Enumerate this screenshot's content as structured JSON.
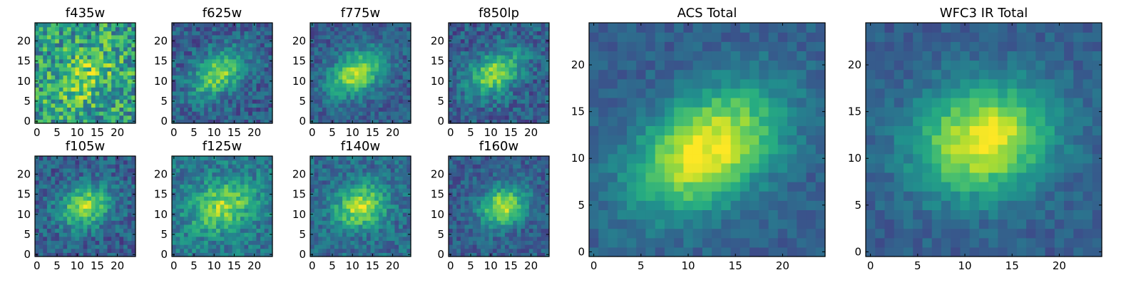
{
  "chart_data": {
    "type": "heatmap",
    "colormap": "viridis",
    "grid_size": [
      25,
      25
    ],
    "panels": [
      {
        "id": "f435w",
        "title": "f435w",
        "center": [
          12,
          11
        ],
        "sigma": [
          6.0,
          4.0
        ],
        "rot": -0.6,
        "amp": 0.25,
        "noise": 0.55,
        "base": 0.55,
        "xlim": [
          0,
          24
        ],
        "ylim": [
          0,
          24
        ],
        "xticks": [
          0,
          5,
          10,
          15,
          20
        ],
        "yticks": [
          0,
          5,
          10,
          15,
          20
        ]
      },
      {
        "id": "f625w",
        "title": "f625w",
        "center": [
          11,
          12
        ],
        "sigma": [
          5.0,
          3.2
        ],
        "rot": -0.6,
        "amp": 0.55,
        "noise": 0.3,
        "base": 0.3,
        "xlim": [
          0,
          24
        ],
        "ylim": [
          0,
          24
        ],
        "xticks": [
          0,
          5,
          10,
          15,
          20
        ],
        "yticks": [
          0,
          5,
          10,
          15,
          20
        ]
      },
      {
        "id": "f775w",
        "title": "f775w",
        "center": [
          11,
          12
        ],
        "sigma": [
          5.0,
          3.2
        ],
        "rot": -0.6,
        "amp": 0.6,
        "noise": 0.25,
        "base": 0.3,
        "xlim": [
          0,
          24
        ],
        "ylim": [
          0,
          24
        ],
        "xticks": [
          0,
          5,
          10,
          15,
          20
        ],
        "yticks": [
          0,
          5,
          10,
          15,
          20
        ]
      },
      {
        "id": "f850lp",
        "title": "f850lp",
        "center": [
          11,
          12
        ],
        "sigma": [
          5.0,
          3.2
        ],
        "rot": -0.6,
        "amp": 0.55,
        "noise": 0.3,
        "base": 0.3,
        "xlim": [
          0,
          24
        ],
        "ylim": [
          0,
          24
        ],
        "xticks": [
          0,
          5,
          10,
          15,
          20
        ],
        "yticks": [
          0,
          5,
          10,
          15,
          20
        ]
      },
      {
        "id": "f105w",
        "title": "f105w",
        "center": [
          12,
          12
        ],
        "sigma": [
          4.5,
          3.5
        ],
        "rot": -0.4,
        "amp": 0.55,
        "noise": 0.3,
        "base": 0.3,
        "xlim": [
          0,
          24
        ],
        "ylim": [
          0,
          24
        ],
        "xticks": [
          0,
          5,
          10,
          15,
          20
        ],
        "yticks": [
          0,
          5,
          10,
          15,
          20
        ]
      },
      {
        "id": "f125w",
        "title": "f125w",
        "center": [
          12,
          12
        ],
        "sigma": [
          5.5,
          4.0
        ],
        "rot": -0.4,
        "amp": 0.45,
        "noise": 0.3,
        "base": 0.4,
        "xlim": [
          0,
          24
        ],
        "ylim": [
          0,
          24
        ],
        "xticks": [
          0,
          5,
          10,
          15,
          20
        ],
        "yticks": [
          0,
          5,
          10,
          15,
          20
        ]
      },
      {
        "id": "f140w",
        "title": "f140w",
        "center": [
          12,
          12
        ],
        "sigma": [
          4.5,
          3.5
        ],
        "rot": -0.4,
        "amp": 0.55,
        "noise": 0.28,
        "base": 0.35,
        "xlim": [
          0,
          24
        ],
        "ylim": [
          0,
          24
        ],
        "xticks": [
          0,
          5,
          10,
          15,
          20
        ],
        "yticks": [
          0,
          5,
          10,
          15,
          20
        ]
      },
      {
        "id": "f160w",
        "title": "f160w",
        "center": [
          13,
          12
        ],
        "sigma": [
          4.0,
          3.2
        ],
        "rot": -0.5,
        "amp": 0.6,
        "noise": 0.25,
        "base": 0.3,
        "xlim": [
          0,
          24
        ],
        "ylim": [
          0,
          24
        ],
        "xticks": [
          0,
          5,
          10,
          15,
          20
        ],
        "yticks": [
          0,
          5,
          10,
          15,
          20
        ]
      },
      {
        "id": "acs_total",
        "title": "ACS Total",
        "center": [
          12,
          11
        ],
        "sigma": [
          6.0,
          3.8
        ],
        "rot": -0.6,
        "amp": 0.7,
        "noise": 0.16,
        "base": 0.3,
        "xlim": [
          0,
          24
        ],
        "ylim": [
          0,
          24
        ],
        "xticks": [
          0,
          5,
          10,
          15,
          20
        ],
        "yticks": [
          0,
          5,
          10,
          15,
          20
        ]
      },
      {
        "id": "wfc3_total",
        "title": "WFC3 IR Total",
        "center": [
          12,
          12
        ],
        "sigma": [
          5.0,
          4.0
        ],
        "rot": -0.3,
        "amp": 0.7,
        "noise": 0.16,
        "base": 0.3,
        "xlim": [
          0,
          24
        ],
        "ylim": [
          0,
          24
        ],
        "xticks": [
          0,
          5,
          10,
          15,
          20
        ],
        "yticks": [
          0,
          5,
          10,
          15,
          20
        ]
      }
    ]
  }
}
